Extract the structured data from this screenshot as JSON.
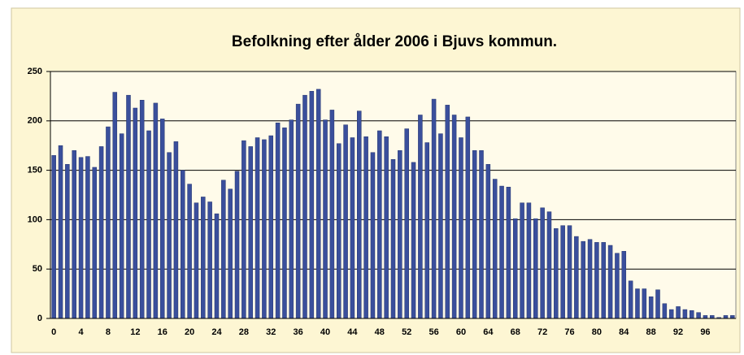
{
  "chart_data": {
    "type": "bar",
    "title": "Befolkning efter ålder 2006 i Bjuvs kommun.",
    "categories": [
      "0",
      null,
      null,
      null,
      "4",
      null,
      null,
      null,
      "8",
      null,
      null,
      null,
      "12",
      null,
      null,
      null,
      "16",
      null,
      null,
      null,
      "20",
      null,
      null,
      null,
      "24",
      null,
      null,
      null,
      "28",
      null,
      null,
      null,
      "32",
      null,
      null,
      null,
      "36",
      null,
      null,
      null,
      "40",
      null,
      null,
      null,
      "44",
      null,
      null,
      null,
      "48",
      null,
      null,
      null,
      "52",
      null,
      null,
      null,
      "56",
      null,
      null,
      null,
      "60",
      null,
      null,
      null,
      "64",
      null,
      null,
      null,
      "68",
      null,
      null,
      null,
      "72",
      null,
      null,
      null,
      "76",
      null,
      null,
      null,
      "80",
      null,
      null,
      null,
      "84",
      null,
      null,
      null,
      "88",
      null,
      null,
      null,
      "92",
      null,
      null,
      null,
      "96",
      null,
      null,
      null,
      null
    ],
    "values": [
      165,
      175,
      156,
      170,
      163,
      164,
      153,
      174,
      194,
      229,
      187,
      226,
      213,
      221,
      190,
      218,
      202,
      168,
      179,
      150,
      136,
      117,
      123,
      118,
      106,
      140,
      131,
      149,
      180,
      174,
      183,
      181,
      185,
      198,
      193,
      201,
      217,
      226,
      230,
      232,
      201,
      211,
      177,
      196,
      183,
      210,
      184,
      168,
      190,
      184,
      161,
      170,
      192,
      158,
      206,
      178,
      222,
      187,
      216,
      206,
      183,
      204,
      170,
      170,
      156,
      141,
      134,
      133,
      101,
      117,
      117,
      101,
      112,
      108,
      91,
      94,
      94,
      83,
      78,
      80,
      77,
      77,
      74,
      66,
      68,
      38,
      30,
      30,
      22,
      29,
      15,
      9,
      12,
      9,
      8,
      6,
      3,
      3,
      1,
      3,
      3
    ],
    "color": "#3a4f9c",
    "ylim": [
      0,
      250
    ],
    "yticks": [
      0,
      50,
      100,
      150,
      200,
      250
    ],
    "grid": true
  }
}
